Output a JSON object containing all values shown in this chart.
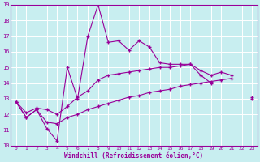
{
  "xlabel": "Windchill (Refroidissement éolien,°C)",
  "bg_color": "#c8eef0",
  "grid_color": "#ffffff",
  "line_color": "#990099",
  "x": [
    0,
    1,
    2,
    3,
    4,
    5,
    6,
    7,
    8,
    9,
    10,
    11,
    12,
    13,
    14,
    15,
    16,
    17,
    18,
    19,
    20,
    21,
    22,
    23
  ],
  "line1": [
    12.8,
    11.8,
    12.3,
    11.1,
    10.3,
    15.0,
    13.0,
    17.0,
    19.0,
    16.6,
    16.7,
    16.1,
    16.7,
    16.3,
    15.3,
    15.2,
    15.2,
    15.2,
    14.5,
    14.0,
    null,
    null,
    null,
    null
  ],
  "line2": [
    12.8,
    12.1,
    12.4,
    12.3,
    12.0,
    12.5,
    13.1,
    13.5,
    14.2,
    14.5,
    14.6,
    14.7,
    14.8,
    14.9,
    15.0,
    15.0,
    15.1,
    15.2,
    14.8,
    14.5,
    14.7,
    14.5,
    null,
    13.1
  ],
  "line3": [
    12.8,
    11.8,
    12.3,
    11.5,
    11.4,
    11.8,
    12.0,
    12.3,
    12.5,
    12.7,
    12.9,
    13.1,
    13.2,
    13.4,
    13.5,
    13.6,
    13.8,
    13.9,
    14.0,
    14.1,
    14.2,
    14.3,
    null,
    13.0
  ],
  "ylim": [
    10,
    19
  ],
  "xlim": [
    -0.5,
    23
  ],
  "yticks": [
    10,
    11,
    12,
    13,
    14,
    15,
    16,
    17,
    18,
    19
  ],
  "xticks": [
    0,
    1,
    2,
    3,
    4,
    5,
    6,
    7,
    8,
    9,
    10,
    11,
    12,
    13,
    14,
    15,
    16,
    17,
    18,
    19,
    20,
    21,
    22,
    23
  ]
}
